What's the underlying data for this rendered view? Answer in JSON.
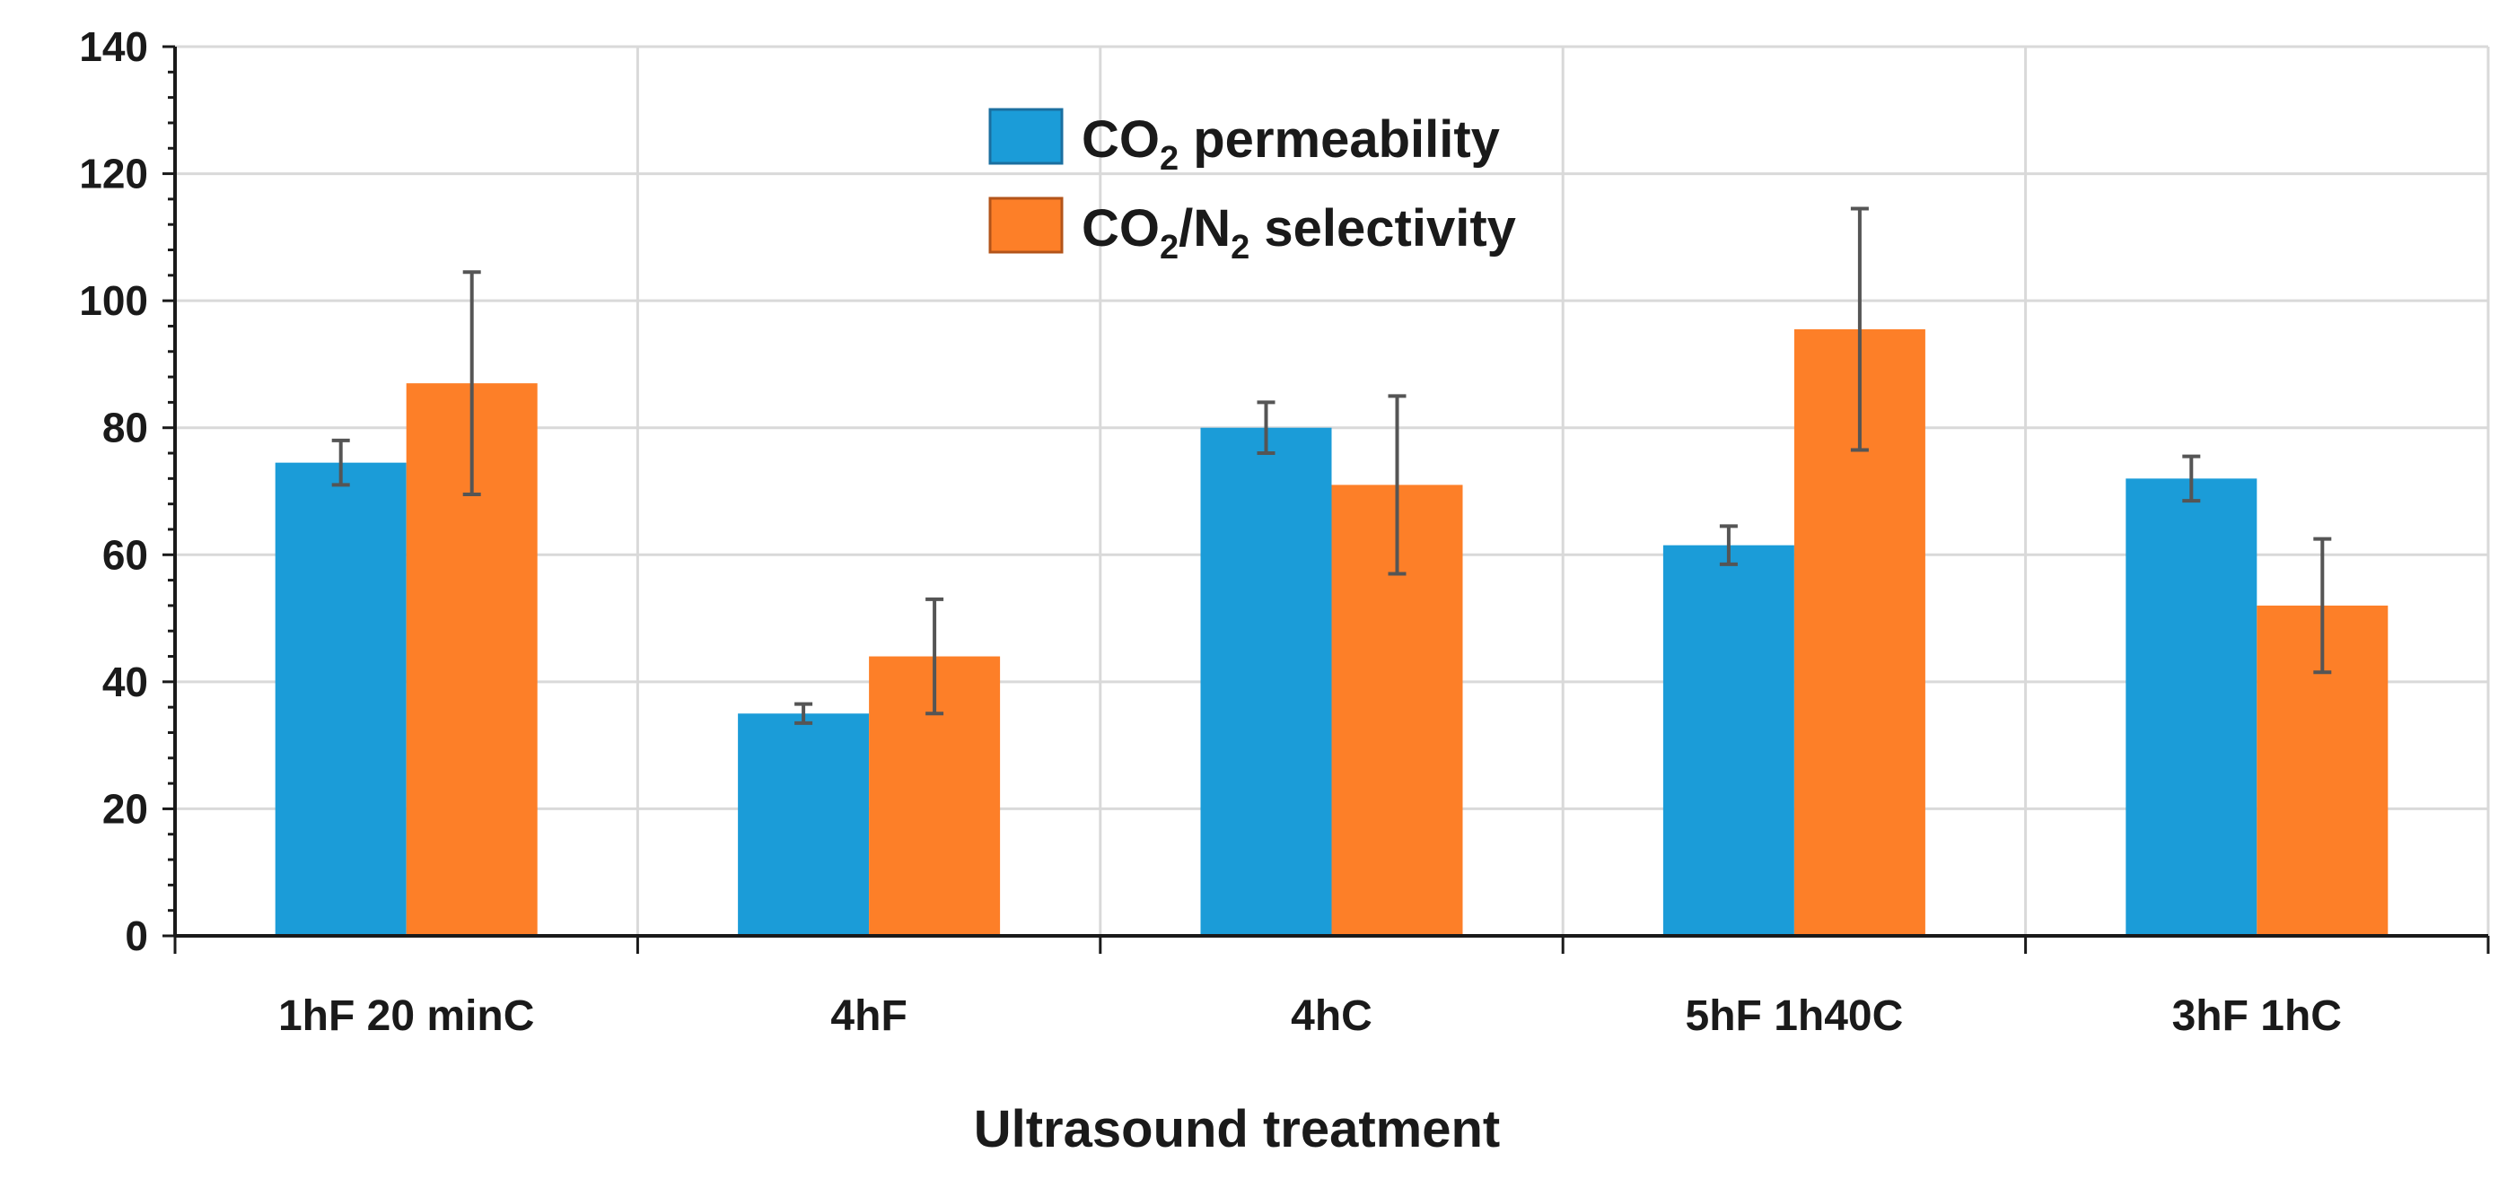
{
  "chart_data": {
    "type": "bar",
    "title": "",
    "xlabel": "Ultrasound treatment",
    "ylabel": "",
    "ylim": [
      0,
      140
    ],
    "yticks": [
      0,
      20,
      40,
      60,
      80,
      100,
      120,
      140
    ],
    "grid": true,
    "legend_position": "top-center",
    "categories": [
      "1hF 20 minC",
      "4hF",
      "4hC",
      "5hF 1h40C",
      "3hF 1hC"
    ],
    "series": [
      {
        "name": "CO2 permeability",
        "legend_main": "CO",
        "legend_sub": "2",
        "legend_rest": " permeability",
        "color": "#1b9cd8",
        "values": [
          74.5,
          35,
          80,
          61.5,
          72
        ],
        "error": [
          3.5,
          1.5,
          4,
          3,
          3.5
        ]
      },
      {
        "name": "CO2/N2 selectivity",
        "legend_main": "CO",
        "legend_sub": "2",
        "legend_mid": "/N",
        "legend_sub2": "2",
        "legend_rest": " selectivity",
        "color": "#fd7f28",
        "values": [
          87,
          44,
          71,
          95.5,
          52
        ],
        "error": [
          17.5,
          9,
          14,
          19,
          10.5
        ]
      }
    ]
  }
}
